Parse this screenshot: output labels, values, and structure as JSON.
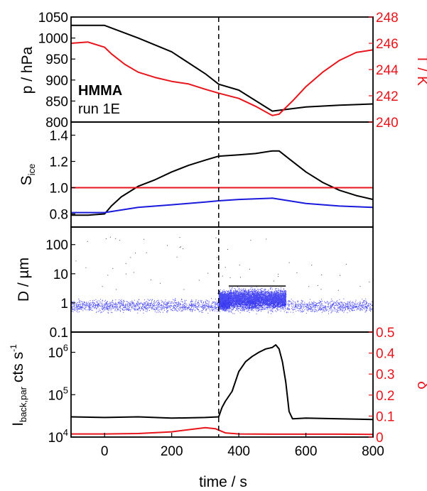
{
  "colors": {
    "black": "#000000",
    "red": "#e8141b",
    "blue": "#1a1adc",
    "dots": "#2a2af0"
  },
  "chart_data": [
    {
      "type": "line",
      "panel": "pressure-temperature",
      "ylabel": "p / hPa",
      "ylabel_right": "T / K",
      "ylim": [
        800,
        1050
      ],
      "ylim_right": [
        240,
        248
      ],
      "yticks": [
        "800",
        "850",
        "900",
        "950",
        "1000",
        "1050"
      ],
      "yticks_right": [
        "240",
        "242",
        "244",
        "246",
        "248"
      ],
      "annotation_bold": "HMMA",
      "annotation": "run 1E",
      "series": [
        {
          "axis": "left",
          "color": "black",
          "x": [
            -100,
            0,
            100,
            200,
            300,
            340,
            400,
            500,
            600,
            700,
            800
          ],
          "y": [
            1030,
            1030,
            1000,
            967,
            915,
            890,
            876,
            826,
            836,
            840,
            843
          ]
        },
        {
          "axis": "right",
          "color": "red",
          "x": [
            -100,
            -50,
            0,
            20,
            60,
            100,
            150,
            200,
            250,
            300,
            340,
            400,
            450,
            500,
            520,
            560,
            600,
            650,
            700,
            750,
            800
          ],
          "y": [
            246.0,
            246.1,
            245.7,
            245.2,
            244.4,
            243.8,
            243.4,
            243.1,
            242.9,
            242.5,
            242.2,
            241.8,
            241.2,
            240.5,
            240.6,
            241.6,
            242.7,
            243.8,
            244.7,
            245.3,
            245.5
          ]
        }
      ]
    },
    {
      "type": "line",
      "panel": "saturation",
      "ylabel": "S",
      "ylabel_sub": "ice",
      "ylim": [
        0.7,
        1.5
      ],
      "yticks": [
        "0.8",
        "1.0",
        "1.2",
        "1.4"
      ],
      "series": [
        {
          "color": "black",
          "x": [
            -100,
            -50,
            0,
            20,
            50,
            100,
            150,
            200,
            250,
            300,
            340,
            400,
            450,
            500,
            520,
            550,
            600,
            650,
            700,
            750,
            800
          ],
          "y": [
            0.79,
            0.79,
            0.8,
            0.86,
            0.93,
            1.01,
            1.06,
            1.12,
            1.17,
            1.21,
            1.24,
            1.25,
            1.26,
            1.28,
            1.28,
            1.22,
            1.12,
            1.04,
            0.98,
            0.94,
            0.91
          ]
        },
        {
          "color": "red",
          "x": [
            -100,
            800
          ],
          "y": [
            1.0,
            1.0
          ]
        },
        {
          "color": "blue",
          "x": [
            -100,
            0,
            100,
            200,
            300,
            340,
            400,
            500,
            600,
            700,
            800
          ],
          "y": [
            0.81,
            0.81,
            0.85,
            0.87,
            0.89,
            0.9,
            0.91,
            0.92,
            0.88,
            0.86,
            0.85
          ]
        }
      ]
    },
    {
      "type": "scatter",
      "panel": "particle-diameter",
      "ylabel": "D / µm",
      "ylim": [
        0.1,
        400
      ],
      "log_y": true,
      "yticks": [
        "0.1",
        "1",
        "10",
        "100"
      ],
      "bands": [
        {
          "x": [
            -100,
            800
          ],
          "y": [
            0.4,
            1.6
          ],
          "color": "blue",
          "density": "dense"
        },
        {
          "x": [
            370,
            540
          ],
          "y": [
            0.55,
            3.8
          ],
          "color": "blue",
          "density": "very dense"
        },
        {
          "x": [
            340,
            370
          ],
          "y": [
            0.5,
            3.0
          ],
          "color": "blue",
          "density": "dense"
        }
      ]
    },
    {
      "type": "line",
      "panel": "backscatter-depolarisation",
      "ylabel": "I",
      "ylabel_sub": "back,par",
      "ylabel_unit": "cts s",
      "ylabel_unit_sup": "-1",
      "ylabel_right": "δ",
      "ylim": [
        10000,
        3000000
      ],
      "log_y": true,
      "ylim_right": [
        0,
        0.5
      ],
      "yticks": [
        {
          "base": "10",
          "exp": "4"
        },
        {
          "base": "10",
          "exp": "5"
        },
        {
          "base": "10",
          "exp": "6"
        }
      ],
      "yticks_right": [
        "0",
        "0.1",
        "0.2",
        "0.3",
        "0.4",
        "0.5"
      ],
      "xlabel": "time / s",
      "xticks": [
        "0",
        "200",
        "400",
        "600",
        "800"
      ],
      "xlim": [
        -100,
        800
      ],
      "series": [
        {
          "axis": "left",
          "color": "black",
          "x": [
            -100,
            0,
            100,
            200,
            300,
            340,
            350,
            360,
            380,
            400,
            420,
            440,
            460,
            480,
            500,
            510,
            520,
            530,
            540,
            550,
            560,
            600,
            700,
            800
          ],
          "y": [
            30000,
            29000,
            30000,
            28000,
            29000,
            30000,
            50000,
            70000,
            120000,
            350000,
            600000,
            800000,
            1000000,
            1200000,
            1300000,
            1500000,
            1200000,
            600000,
            200000,
            40000,
            27000,
            28000,
            27000,
            26000
          ]
        },
        {
          "axis": "right",
          "color": "red",
          "x": [
            -100,
            0,
            100,
            200,
            250,
            300,
            330,
            360,
            400,
            500,
            600,
            700,
            800
          ],
          "y": [
            0.015,
            0.015,
            0.017,
            0.025,
            0.035,
            0.045,
            0.04,
            0.02,
            0.015,
            0.014,
            0.014,
            0.014,
            0.013
          ]
        }
      ]
    }
  ],
  "vline_x": 340
}
